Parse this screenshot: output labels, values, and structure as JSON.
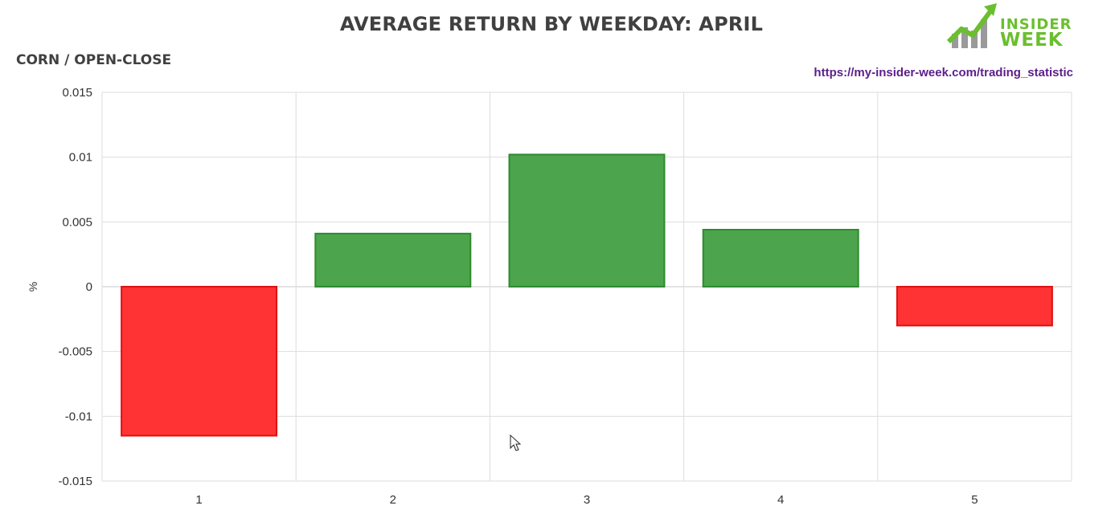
{
  "header": {
    "title": "AVERAGE RETURN BY WEEKDAY: APRIL",
    "subtitle": "CORN / OPEN-CLOSE",
    "url": "https://my-insider-week.com/trading_statistic",
    "logo_top": "INSIDER",
    "logo_bottom": "WEEK"
  },
  "colors": {
    "positive_fill": "#4ca44c",
    "positive_stroke": "#2e8b2e",
    "negative_fill": "#ff3333",
    "negative_stroke": "#e01010",
    "grid": "#dddddd",
    "logo_green": "#6abf2e",
    "logo_gray": "#9a9a9a"
  },
  "chart_data": {
    "type": "bar",
    "title": "AVERAGE RETURN BY WEEKDAY: APRIL",
    "subtitle": "CORN / OPEN-CLOSE",
    "xlabel": "",
    "ylabel": "%",
    "categories": [
      "1",
      "2",
      "3",
      "4",
      "5"
    ],
    "values": [
      -0.0115,
      0.0041,
      0.0102,
      0.0044,
      -0.003
    ],
    "ylim": [
      -0.015,
      0.015
    ],
    "yticks": [
      0.015,
      0.01,
      0.005,
      0,
      -0.005,
      -0.01,
      -0.015
    ],
    "ytick_labels": [
      "0.015",
      "0.01",
      "0.005",
      "0",
      "-0.005",
      "-0.01",
      "-0.015"
    ],
    "grid": true,
    "legend": "none"
  }
}
